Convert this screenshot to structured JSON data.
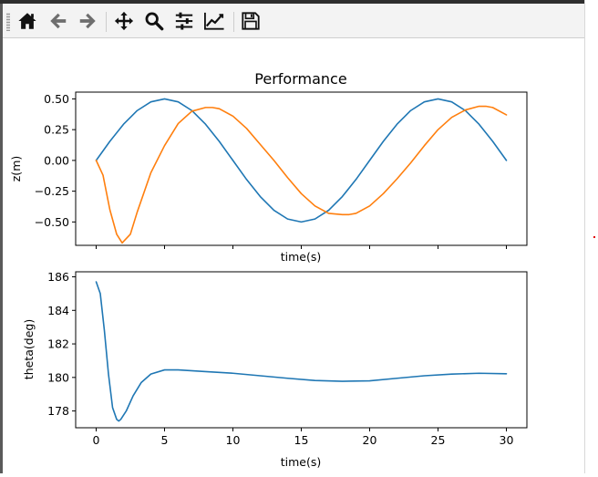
{
  "toolbar": {
    "buttons": [
      {
        "id": "home",
        "icon": "home-icon"
      },
      {
        "id": "back",
        "icon": "arrow-left-icon"
      },
      {
        "id": "forward",
        "icon": "arrow-right-icon"
      },
      {
        "id": "pan",
        "icon": "move-icon"
      },
      {
        "id": "zoom",
        "icon": "magnifier-icon"
      },
      {
        "id": "subplots",
        "icon": "sliders-icon"
      },
      {
        "id": "axes",
        "icon": "line-chart-icon"
      },
      {
        "id": "save",
        "icon": "floppy-disk-icon"
      }
    ]
  },
  "colors": {
    "series_blue": "#1f77b4",
    "series_orange": "#ff7f0e"
  },
  "chart_data": [
    {
      "type": "line",
      "title": "Performance",
      "xlabel": "time(s)",
      "ylabel": "z(m)",
      "xlim": [
        -1.5,
        31.5
      ],
      "ylim": [
        -0.69,
        0.555
      ],
      "xticks": [
        0,
        5,
        10,
        15,
        20,
        25,
        30
      ],
      "xtick_labels_shown": false,
      "yticks": [
        -0.5,
        -0.25,
        0.0,
        0.25,
        0.5
      ],
      "ytick_labels": [
        "−0.50",
        "−0.25",
        "0.00",
        "0.25",
        "0.50"
      ],
      "grid": false,
      "series": [
        {
          "color": "#1f77b4",
          "x": [
            0,
            1,
            2,
            3,
            4,
            5,
            6,
            7,
            8,
            9,
            10,
            11,
            12,
            13,
            14,
            15,
            16,
            17,
            18,
            19,
            20,
            21,
            22,
            23,
            24,
            25,
            26,
            27,
            28,
            29,
            30
          ],
          "y": [
            0.0,
            0.155,
            0.294,
            0.405,
            0.476,
            0.5,
            0.476,
            0.405,
            0.294,
            0.155,
            0.0,
            -0.155,
            -0.294,
            -0.405,
            -0.476,
            -0.5,
            -0.476,
            -0.405,
            -0.294,
            -0.155,
            0.0,
            0.155,
            0.294,
            0.405,
            0.476,
            0.5,
            0.476,
            0.405,
            0.294,
            0.155,
            0.0
          ]
        },
        {
          "color": "#ff7f0e",
          "x": [
            0,
            0.5,
            1,
            1.5,
            1.9,
            2.5,
            3,
            4,
            5,
            6,
            7,
            8,
            8.5,
            9,
            10,
            11,
            12,
            13,
            14,
            15,
            16,
            17,
            18,
            18.5,
            19,
            20,
            21,
            22,
            23,
            24,
            25,
            26,
            27,
            28,
            28.5,
            29,
            30
          ],
          "y": [
            0.0,
            -0.12,
            -0.4,
            -0.6,
            -0.67,
            -0.6,
            -0.42,
            -0.1,
            0.12,
            0.3,
            0.4,
            0.43,
            0.43,
            0.42,
            0.36,
            0.26,
            0.13,
            0.0,
            -0.14,
            -0.27,
            -0.37,
            -0.43,
            -0.44,
            -0.44,
            -0.43,
            -0.37,
            -0.27,
            -0.15,
            -0.02,
            0.12,
            0.25,
            0.35,
            0.41,
            0.44,
            0.44,
            0.43,
            0.37
          ]
        }
      ]
    },
    {
      "type": "line",
      "title": "",
      "xlabel": "time(s)",
      "ylabel": "theta(deg)",
      "xlim": [
        -1.5,
        31.5
      ],
      "ylim": [
        177.0,
        186.3
      ],
      "xticks": [
        0,
        5,
        10,
        15,
        20,
        25,
        30
      ],
      "xtick_labels": [
        "0",
        "5",
        "10",
        "15",
        "20",
        "25",
        "30"
      ],
      "yticks": [
        178,
        180,
        182,
        184,
        186
      ],
      "ytick_labels": [
        "178",
        "180",
        "182",
        "184",
        "186"
      ],
      "grid": false,
      "series": [
        {
          "color": "#1f77b4",
          "x": [
            0,
            0.3,
            0.6,
            0.9,
            1.2,
            1.5,
            1.65,
            1.8,
            2.2,
            2.7,
            3.3,
            4,
            5,
            6,
            8,
            10,
            12,
            14,
            16,
            18,
            20,
            22,
            24,
            26,
            28,
            30
          ],
          "y": [
            185.7,
            185.0,
            182.8,
            180.2,
            178.2,
            177.5,
            177.4,
            177.5,
            178.0,
            178.9,
            179.7,
            180.2,
            180.45,
            180.45,
            180.35,
            180.25,
            180.1,
            179.95,
            179.82,
            179.77,
            179.8,
            179.95,
            180.1,
            180.2,
            180.25,
            180.22
          ]
        }
      ]
    }
  ]
}
